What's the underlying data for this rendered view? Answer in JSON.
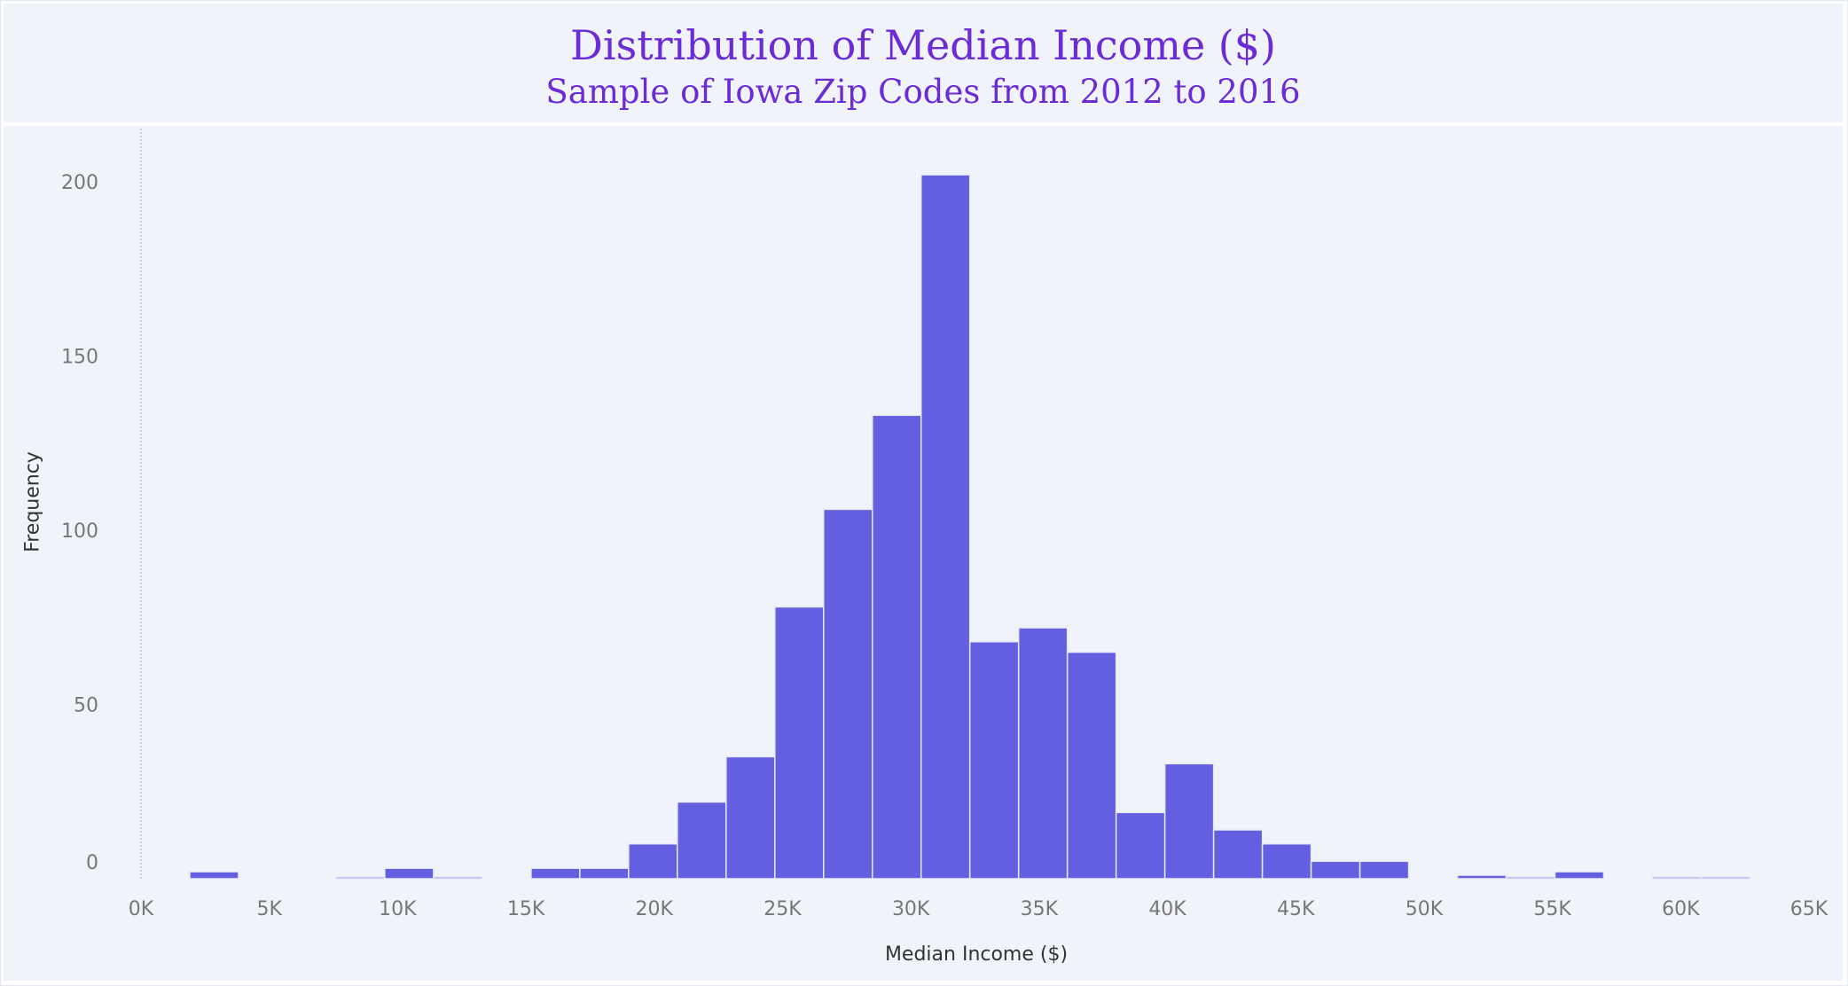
{
  "chart_data": {
    "type": "bar",
    "title": "Distribution of Median Income ($)",
    "subtitle": "Sample of Iowa Zip Codes from 2012 to 2016",
    "xlabel": "Median Income ($)",
    "ylabel": "Frequency",
    "x_tick_labels": [
      "0K",
      "5K",
      "10K",
      "15K",
      "20K",
      "25K",
      "30K",
      "35K",
      "40K",
      "45K",
      "50K",
      "55K",
      "60K",
      "65K"
    ],
    "y_tick_labels": [
      "0",
      "50",
      "100",
      "150",
      "200"
    ],
    "xlim": [
      0,
      65000
    ],
    "ylim": [
      0,
      210
    ],
    "bin_width": 1900,
    "bins": [
      {
        "start": 1900,
        "count": 2
      },
      {
        "start": 7600,
        "count": 0.5
      },
      {
        "start": 9500,
        "count": 3
      },
      {
        "start": 11400,
        "count": 0.5
      },
      {
        "start": 15200,
        "count": 3
      },
      {
        "start": 17100,
        "count": 3
      },
      {
        "start": 19000,
        "count": 10
      },
      {
        "start": 20900,
        "count": 22
      },
      {
        "start": 22800,
        "count": 35
      },
      {
        "start": 24700,
        "count": 78
      },
      {
        "start": 26600,
        "count": 106
      },
      {
        "start": 28500,
        "count": 133
      },
      {
        "start": 30400,
        "count": 202
      },
      {
        "start": 32300,
        "count": 68
      },
      {
        "start": 34200,
        "count": 72
      },
      {
        "start": 36100,
        "count": 65
      },
      {
        "start": 38000,
        "count": 19
      },
      {
        "start": 39900,
        "count": 33
      },
      {
        "start": 41800,
        "count": 14
      },
      {
        "start": 43700,
        "count": 10
      },
      {
        "start": 45600,
        "count": 5
      },
      {
        "start": 47500,
        "count": 5
      },
      {
        "start": 51300,
        "count": 1
      },
      {
        "start": 53200,
        "count": 0.5
      },
      {
        "start": 55100,
        "count": 2
      },
      {
        "start": 58900,
        "count": 0.5
      },
      {
        "start": 60800,
        "count": 0.5
      }
    ],
    "colors": {
      "bar": "#645ee0",
      "bar_edge": "#e8eaf6",
      "title": "#6b2bd6",
      "background": "#f0f3f9"
    },
    "grid": false
  }
}
